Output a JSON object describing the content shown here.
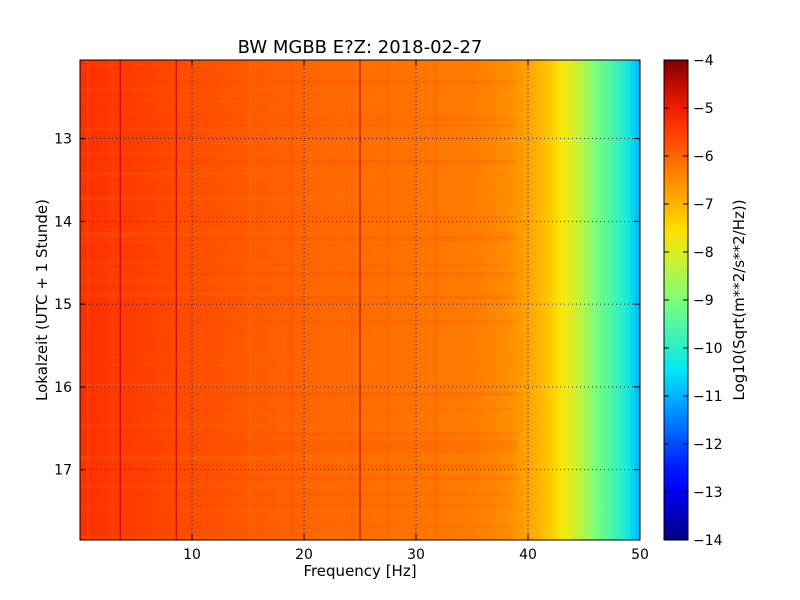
{
  "chart_data": {
    "type": "heatmap",
    "title": "BW MGBB E?Z: 2018-02-27",
    "xlabel": "Frequency [Hz]",
    "ylabel": "Lokalzeit (UTC + 1 Stunde)",
    "xlim": [
      0,
      50
    ],
    "ylim": [
      17.85,
      12.05
    ],
    "y_inverted": true,
    "grid": "dotted",
    "x_ticks": [
      10,
      20,
      30,
      40,
      50
    ],
    "x_tick_labels": [
      "10",
      "20",
      "30",
      "40",
      "50"
    ],
    "y_ticks": [
      13,
      14,
      15,
      16,
      17
    ],
    "y_tick_labels": [
      "13",
      "14",
      "15",
      "16",
      "17"
    ],
    "colorbar": {
      "label": "Log10(Sqrt(m**2/s**2/Hz))",
      "colormap": "jet",
      "range": [
        -14,
        -4
      ],
      "ticks": [
        -4,
        -5,
        -6,
        -7,
        -8,
        -9,
        -10,
        -11,
        -12,
        -13,
        -14
      ],
      "tick_labels": [
        "−4",
        "−5",
        "−6",
        "−7",
        "−8",
        "−9",
        "−10",
        "−11",
        "−12",
        "−13",
        "−14"
      ]
    },
    "frequency_profile": {
      "frequency_hz": [
        0,
        5,
        10,
        20,
        30,
        35,
        38,
        40,
        42,
        43,
        44,
        45,
        46,
        47,
        48,
        49,
        50
      ],
      "log10_amplitude": [
        -5.3,
        -5.5,
        -5.7,
        -6.0,
        -6.2,
        -6.3,
        -6.5,
        -6.8,
        -7.3,
        -7.7,
        -8.0,
        -8.5,
        -9.0,
        -9.4,
        -9.8,
        -10.3,
        -11.0
      ]
    },
    "spectral_lines_hz": [
      3.6,
      8.6,
      25.0
    ]
  }
}
